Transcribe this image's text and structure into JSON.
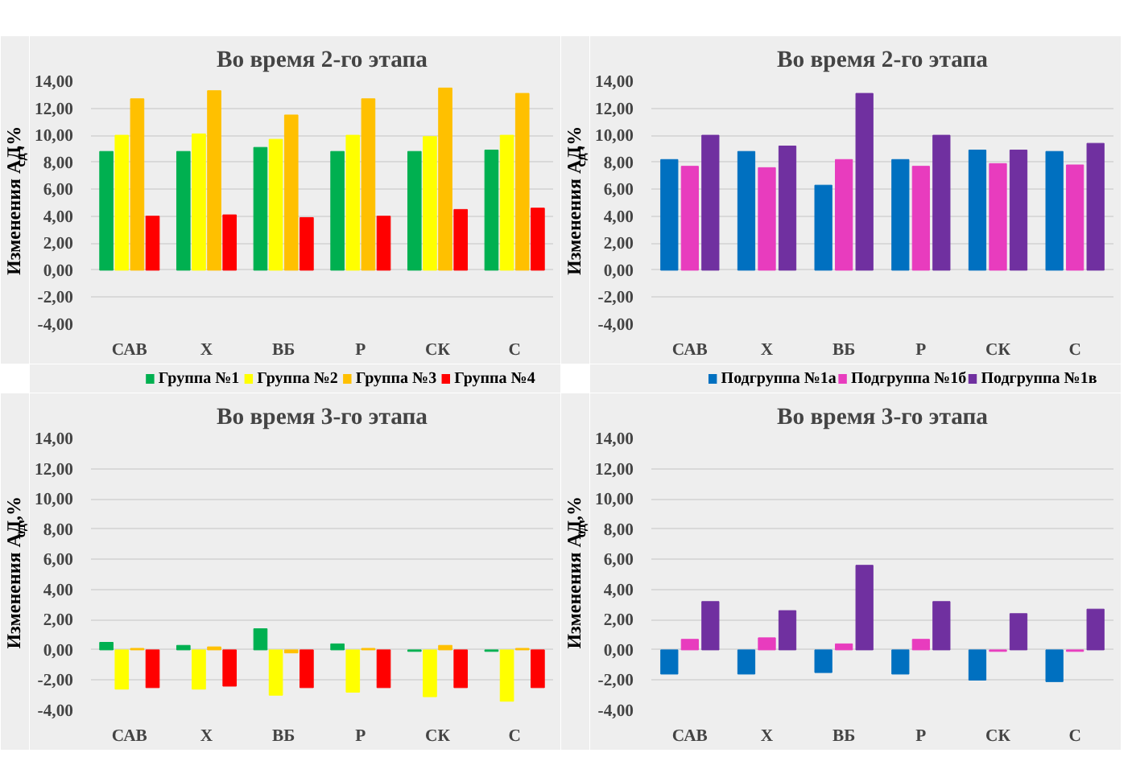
{
  "chart_data": [
    {
      "type": "bar",
      "title": "Во время 2-го этапа",
      "ylabel": "Изменения АД$_{сд}$,%",
      "categories": [
        "САВ",
        "Х",
        "ВБ",
        "Р",
        "СК",
        "С"
      ],
      "ylim": [
        -4,
        14
      ],
      "yticks": [
        {
          "value": -4,
          "label": "-4,00"
        },
        {
          "value": -2,
          "label": "-2,00"
        },
        {
          "value": 0,
          "label": "0,00"
        },
        {
          "value": 2,
          "label": "2,00"
        },
        {
          "value": 4,
          "label": "4,00"
        },
        {
          "value": 6,
          "label": "6,00"
        },
        {
          "value": 8,
          "label": "8,00"
        },
        {
          "value": 10,
          "label": "10,00"
        },
        {
          "value": 12,
          "label": "12,00"
        },
        {
          "value": 14,
          "label": "14,00"
        }
      ],
      "grid": "y",
      "legend": "bottom",
      "series": [
        {
          "name": "Группа №1",
          "color": "#00b050",
          "values": [
            8.8,
            8.8,
            9.1,
            8.8,
            8.8,
            8.9
          ]
        },
        {
          "name": "Группа №2",
          "color": "#ffff00",
          "values": [
            10.0,
            10.1,
            9.7,
            10.0,
            9.9,
            10.0
          ]
        },
        {
          "name": "Группа №3",
          "color": "#ffc000",
          "values": [
            12.7,
            13.3,
            11.5,
            12.7,
            13.5,
            13.1
          ]
        },
        {
          "name": "Группа №4",
          "color": "#ff0000",
          "values": [
            4.0,
            4.1,
            3.9,
            4.0,
            4.5,
            4.6
          ]
        }
      ]
    },
    {
      "type": "bar",
      "title": "Во время 2-го этапа",
      "ylabel": "Изменения АД$_{сд}$,%",
      "categories": [
        "САВ",
        "Х",
        "ВБ",
        "Р",
        "СК",
        "С"
      ],
      "ylim": [
        -4,
        14
      ],
      "yticks": [
        {
          "value": -4,
          "label": "-4,00"
        },
        {
          "value": -2,
          "label": "-2,00"
        },
        {
          "value": 0,
          "label": "0,00"
        },
        {
          "value": 2,
          "label": "2,00"
        },
        {
          "value": 4,
          "label": "4,00"
        },
        {
          "value": 6,
          "label": "6,00"
        },
        {
          "value": 8,
          "label": "8,00"
        },
        {
          "value": 10,
          "label": "10,00"
        },
        {
          "value": 12,
          "label": "12,00"
        },
        {
          "value": 14,
          "label": "14,00"
        }
      ],
      "grid": "y",
      "legend": "bottom",
      "series": [
        {
          "name": "Подгруппа №1а",
          "color": "#0070c0",
          "values": [
            8.2,
            8.8,
            6.3,
            8.2,
            8.9,
            8.8
          ]
        },
        {
          "name": "Подгруппа №1б",
          "color": "#e83cbe",
          "values": [
            7.7,
            7.6,
            8.2,
            7.7,
            7.9,
            7.8
          ]
        },
        {
          "name": "Подгруппа №1в",
          "color": "#7030a0",
          "values": [
            10.0,
            9.2,
            13.1,
            10.0,
            8.9,
            9.4
          ]
        }
      ]
    },
    {
      "type": "bar",
      "title": "Во время 3-го этапа",
      "ylabel": "Изменения АД$_{сд}$,%",
      "categories": [
        "САВ",
        "Х",
        "ВБ",
        "Р",
        "СК",
        "С"
      ],
      "ylim": [
        -4,
        14
      ],
      "yticks": [
        {
          "value": -4,
          "label": "-4,00"
        },
        {
          "value": -2,
          "label": "-2,00"
        },
        {
          "value": 0,
          "label": "0,00"
        },
        {
          "value": 2,
          "label": "2,00"
        },
        {
          "value": 4,
          "label": "4,00"
        },
        {
          "value": 6,
          "label": "6,00"
        },
        {
          "value": 8,
          "label": "8,00"
        },
        {
          "value": 10,
          "label": "10,00"
        },
        {
          "value": 12,
          "label": "12,00"
        },
        {
          "value": 14,
          "label": "14,00"
        }
      ],
      "grid": "y",
      "series": [
        {
          "color": "#00b050",
          "values": [
            0.5,
            0.3,
            1.4,
            0.4,
            -0.1,
            -0.1
          ]
        },
        {
          "color": "#ffff00",
          "values": [
            -2.6,
            -2.6,
            -3.0,
            -2.8,
            -3.1,
            -3.4
          ]
        },
        {
          "color": "#ffc000",
          "values": [
            0.1,
            0.2,
            -0.2,
            0.1,
            0.3,
            0.1
          ]
        },
        {
          "color": "#ff0000",
          "values": [
            -2.5,
            -2.4,
            -2.5,
            -2.5,
            -2.5,
            -2.5
          ]
        }
      ]
    },
    {
      "type": "bar",
      "title": "Во время 3-го этапа",
      "ylabel": "Изменения АД$_{сд}$,%",
      "categories": [
        "САВ",
        "Х",
        "ВБ",
        "Р",
        "СК",
        "С"
      ],
      "ylim": [
        -4,
        14
      ],
      "yticks": [
        {
          "value": -4,
          "label": "-4,00"
        },
        {
          "value": -2,
          "label": "-2,00"
        },
        {
          "value": 0,
          "label": "0,00"
        },
        {
          "value": 2,
          "label": "2,00"
        },
        {
          "value": 4,
          "label": "4,00"
        },
        {
          "value": 6,
          "label": "6,00"
        },
        {
          "value": 8,
          "label": "8,00"
        },
        {
          "value": 10,
          "label": "10,00"
        },
        {
          "value": 12,
          "label": "12,00"
        },
        {
          "value": 14,
          "label": "14,00"
        }
      ],
      "grid": "y",
      "series": [
        {
          "color": "#0070c0",
          "values": [
            -1.6,
            -1.6,
            -1.5,
            -1.6,
            -2.0,
            -2.1
          ]
        },
        {
          "color": "#e83cbe",
          "values": [
            0.7,
            0.8,
            0.4,
            0.7,
            -0.1,
            -0.1
          ]
        },
        {
          "color": "#7030a0",
          "values": [
            3.2,
            2.6,
            5.6,
            3.2,
            2.4,
            2.7
          ]
        }
      ]
    }
  ]
}
